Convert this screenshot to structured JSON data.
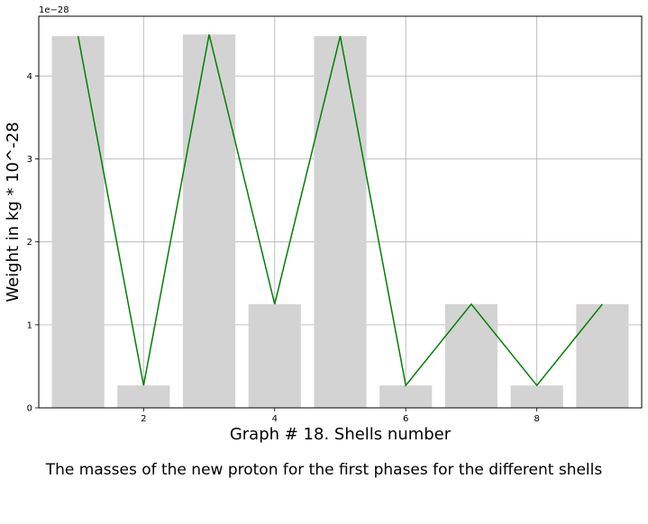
{
  "chart_data": {
    "type": "bar",
    "xlabel": "Graph # 18. Shells number",
    "ylabel": "Weight in kg * 10^-28",
    "y_offset_text": "1e−28",
    "caption": "The masses of the new proton for the first phases for the different shells",
    "x": [
      1,
      2,
      3,
      4,
      5,
      6,
      7,
      8,
      9
    ],
    "bars": {
      "values": [
        4.48,
        0.27,
        4.5,
        1.25,
        4.48,
        0.27,
        1.25,
        0.27,
        1.25
      ],
      "color": "#d3d3d3"
    },
    "line": {
      "values": [
        4.48,
        0.27,
        4.5,
        1.25,
        4.48,
        0.27,
        1.25,
        0.27,
        1.25
      ],
      "color": "#008000"
    },
    "xlim": [
      0.4,
      9.6
    ],
    "ylim": [
      0,
      4.72
    ],
    "xticks": [
      2,
      4,
      6,
      8
    ],
    "yticks": [
      0,
      1,
      2,
      3,
      4
    ],
    "grid": true
  }
}
